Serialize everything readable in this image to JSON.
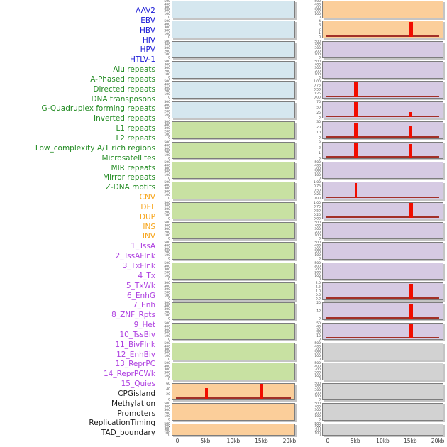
{
  "colors": {
    "label_virus": "#1a1ad6",
    "label_repeat": "#228b22",
    "label_sv": "#f7a51b",
    "label_chromatin": "#ae3fe0",
    "label_other": "#1a1a1a",
    "fill_blue": "#d5e7ef",
    "fill_green": "#c8e1a2",
    "fill_orange": "#fbce9a",
    "fill_purple": "#d6cae3",
    "fill_gray": "#d2d2d2",
    "spike_red": "#f10d00",
    "baseline_red": "#a23028",
    "panel_border": "#7d7d7d",
    "tick_text": "#4d4d4d",
    "axis_text": "#3a3a3a"
  },
  "chart_data": {
    "type": "area",
    "title": "",
    "xlabel": "",
    "ylabel": "",
    "x_range_kb": [
      0,
      20
    ],
    "x_ticks": [
      "0",
      "5kb",
      "10kb",
      "15kb",
      "20kb"
    ],
    "grid": false,
    "legend": "none",
    "facet_row_mapping": "each small panel spans two consecutive row labels",
    "row_labels": [
      {
        "text": "AAV2",
        "group": "virus"
      },
      {
        "text": "EBV",
        "group": "virus"
      },
      {
        "text": "HBV",
        "group": "virus"
      },
      {
        "text": "HIV",
        "group": "virus"
      },
      {
        "text": "HPV",
        "group": "virus"
      },
      {
        "text": "HTLV-1",
        "group": "virus"
      },
      {
        "text": "Alu repeats",
        "group": "repeat"
      },
      {
        "text": "A-Phased repeats",
        "group": "repeat"
      },
      {
        "text": "Directed repeats",
        "group": "repeat"
      },
      {
        "text": "DNA transposons",
        "group": "repeat"
      },
      {
        "text": "G-Quadruplex forming repeats",
        "group": "repeat"
      },
      {
        "text": "Inverted repeats",
        "group": "repeat"
      },
      {
        "text": "L1 repeats",
        "group": "repeat"
      },
      {
        "text": "L2 repeats",
        "group": "repeat"
      },
      {
        "text": "Low_complexity A/T rich regions",
        "group": "repeat"
      },
      {
        "text": "Microsatellites",
        "group": "repeat"
      },
      {
        "text": "MIR repeats",
        "group": "repeat"
      },
      {
        "text": "Mirror repeats",
        "group": "repeat"
      },
      {
        "text": "Z-DNA motifs",
        "group": "repeat"
      },
      {
        "text": "CNV",
        "group": "sv"
      },
      {
        "text": "DEL",
        "group": "sv"
      },
      {
        "text": "DUP",
        "group": "sv"
      },
      {
        "text": "INS",
        "group": "sv"
      },
      {
        "text": "INV",
        "group": "sv"
      },
      {
        "text": "1_TssA",
        "group": "chromatin"
      },
      {
        "text": "2_TssAFlnk",
        "group": "chromatin"
      },
      {
        "text": "3_TxFlnk",
        "group": "chromatin"
      },
      {
        "text": "4_Tx",
        "group": "chromatin"
      },
      {
        "text": "5_TxWk",
        "group": "chromatin"
      },
      {
        "text": "6_EnhG",
        "group": "chromatin"
      },
      {
        "text": "7_Enh",
        "group": "chromatin"
      },
      {
        "text": "8_ZNF_Rpts",
        "group": "chromatin"
      },
      {
        "text": "9_Het",
        "group": "chromatin"
      },
      {
        "text": "10_TssBiv",
        "group": "chromatin"
      },
      {
        "text": "11_BivFlnk",
        "group": "chromatin"
      },
      {
        "text": "12_EnhBiv",
        "group": "chromatin"
      },
      {
        "text": "13_ReprPC",
        "group": "chromatin"
      },
      {
        "text": "14_ReprPCWk",
        "group": "chromatin"
      },
      {
        "text": "15_Quies",
        "group": "chromatin"
      },
      {
        "text": "CPGisland",
        "group": "other"
      },
      {
        "text": "Methylation",
        "group": "other"
      },
      {
        "text": "Promoters",
        "group": "other"
      },
      {
        "text": "ReplicationTiming",
        "group": "other"
      },
      {
        "text": "TAD_boundary",
        "group": "other"
      }
    ],
    "facet_rows": [
      [
        "AAV2",
        "EBV"
      ],
      [
        "HBV",
        "HIV"
      ],
      [
        "HPV",
        "HTLV-1"
      ],
      [
        "Alu repeats",
        "A-Phased repeats"
      ],
      [
        "Directed repeats",
        "DNA transposons"
      ],
      [
        "G-Quadruplex forming repeats",
        "Inverted repeats"
      ],
      [
        "L1 repeats",
        "L2 repeats"
      ],
      [
        "Low_complexity A/T rich regions",
        "Microsatellites"
      ],
      [
        "MIR repeats",
        "Mirror repeats"
      ],
      [
        "Z-DNA motifs",
        "CNV"
      ],
      [
        "DEL",
        "DUP"
      ],
      [
        "INS",
        "INV"
      ],
      [
        "1_TssA",
        "2_TssAFlnk"
      ],
      [
        "3_TxFlnk",
        "4_Tx"
      ],
      [
        "5_TxWk",
        "6_EnhG"
      ],
      [
        "7_Enh",
        "8_ZNF_Rpts"
      ],
      [
        "9_Het",
        "10_TssBiv"
      ],
      [
        "11_BivFlnk",
        "12_EnhBiv"
      ],
      [
        "13_ReprPC",
        "14_ReprPCWk"
      ],
      [
        "15_Quies",
        "CPGisland"
      ],
      [
        "Methylation",
        "Promoters"
      ],
      [
        "ReplicationTiming",
        "TAD_boundary"
      ]
    ],
    "left_facets": [
      {
        "fill": "blue",
        "ylim": [
          0,
          500
        ],
        "ticks": [
          "500",
          "400",
          "300",
          "200",
          "100",
          "0"
        ],
        "baseline": false,
        "spikes": []
      },
      {
        "fill": "blue",
        "ylim": [
          0,
          500
        ],
        "ticks": [
          "500",
          "400",
          "300",
          "200",
          "100",
          "0"
        ],
        "baseline": false,
        "spikes": []
      },
      {
        "fill": "blue",
        "ylim": [
          0,
          500
        ],
        "ticks": [
          "500",
          "400",
          "300",
          "200",
          "100",
          "0"
        ],
        "baseline": false,
        "spikes": []
      },
      {
        "fill": "blue",
        "ylim": [
          0,
          500
        ],
        "ticks": [
          "500",
          "400",
          "300",
          "200",
          "100",
          "0"
        ],
        "baseline": false,
        "spikes": []
      },
      {
        "fill": "blue",
        "ylim": [
          0,
          500
        ],
        "ticks": [
          "500",
          "400",
          "300",
          "200",
          "100",
          "0"
        ],
        "baseline": false,
        "spikes": []
      },
      {
        "fill": "blue",
        "ylim": [
          0,
          500
        ],
        "ticks": [
          "500",
          "400",
          "300",
          "200",
          "100",
          "0"
        ],
        "baseline": false,
        "spikes": []
      },
      {
        "fill": "green",
        "ylim": [
          0,
          500
        ],
        "ticks": [
          "500",
          "400",
          "300",
          "200",
          "100",
          "0"
        ],
        "baseline": false,
        "spikes": []
      },
      {
        "fill": "green",
        "ylim": [
          0,
          500
        ],
        "ticks": [
          "500",
          "400",
          "300",
          "200",
          "100",
          "0"
        ],
        "baseline": false,
        "spikes": []
      },
      {
        "fill": "green",
        "ylim": [
          0,
          500
        ],
        "ticks": [
          "500",
          "400",
          "300",
          "200",
          "100",
          "0"
        ],
        "baseline": false,
        "spikes": []
      },
      {
        "fill": "green",
        "ylim": [
          0,
          500
        ],
        "ticks": [
          "500",
          "400",
          "300",
          "200",
          "100",
          "0"
        ],
        "baseline": false,
        "spikes": []
      },
      {
        "fill": "green",
        "ylim": [
          0,
          500
        ],
        "ticks": [
          "500",
          "400",
          "300",
          "200",
          "100",
          "0"
        ],
        "baseline": false,
        "spikes": []
      },
      {
        "fill": "green",
        "ylim": [
          0,
          500
        ],
        "ticks": [
          "500",
          "400",
          "300",
          "200",
          "100",
          "0"
        ],
        "baseline": false,
        "spikes": []
      },
      {
        "fill": "green",
        "ylim": [
          0,
          500
        ],
        "ticks": [
          "500",
          "400",
          "300",
          "200",
          "100",
          "0"
        ],
        "baseline": false,
        "spikes": []
      },
      {
        "fill": "green",
        "ylim": [
          0,
          500
        ],
        "ticks": [
          "500",
          "400",
          "300",
          "200",
          "100",
          "0"
        ],
        "baseline": false,
        "spikes": []
      },
      {
        "fill": "green",
        "ylim": [
          0,
          500
        ],
        "ticks": [
          "500",
          "400",
          "300",
          "200",
          "100",
          "0"
        ],
        "baseline": false,
        "spikes": []
      },
      {
        "fill": "green",
        "ylim": [
          0,
          500
        ],
        "ticks": [
          "500",
          "400",
          "300",
          "200",
          "100",
          "0"
        ],
        "baseline": false,
        "spikes": []
      },
      {
        "fill": "green",
        "ylim": [
          0,
          500
        ],
        "ticks": [
          "500",
          "400",
          "300",
          "200",
          "100",
          "0"
        ],
        "baseline": false,
        "spikes": []
      },
      {
        "fill": "green",
        "ylim": [
          0,
          500
        ],
        "ticks": [
          "500",
          "400",
          "300",
          "200",
          "100",
          "0"
        ],
        "baseline": false,
        "spikes": []
      },
      {
        "fill": "green",
        "ylim": [
          0,
          500
        ],
        "ticks": [
          "500",
          "400",
          "300",
          "200",
          "100",
          "0"
        ],
        "baseline": false,
        "spikes": []
      },
      {
        "fill": "orange",
        "ylim": [
          0,
          60
        ],
        "ticks": [
          "60",
          "40",
          "20",
          "0"
        ],
        "baseline": true,
        "spikes": [
          {
            "x_kb": 5,
            "v": 45,
            "frac": 0.75,
            "w": 4
          },
          {
            "x_kb": 15,
            "v": 60,
            "frac": 1,
            "w": 4
          }
        ]
      },
      {
        "fill": "orange",
        "ylim": [
          0,
          500
        ],
        "ticks": [
          "500",
          "400",
          "300",
          "200",
          "100",
          "0"
        ],
        "baseline": false,
        "spikes": []
      },
      {
        "fill": "orange",
        "ylim": [
          0,
          500
        ],
        "ticks": [
          "500",
          "400",
          "300",
          "200",
          "100",
          "0"
        ],
        "baseline": false,
        "spikes": [],
        "dense": true
      }
    ],
    "right_facets": [
      {
        "fill": "orange",
        "ylim": [
          0,
          500
        ],
        "ticks": [
          "500",
          "400",
          "300",
          "200",
          "100",
          "0"
        ],
        "baseline": false,
        "spikes": []
      },
      {
        "fill": "orange",
        "ylim": [
          0,
          4
        ],
        "ticks": [
          "4",
          "3",
          "2",
          "1",
          "0"
        ],
        "baseline": true,
        "spikes": [
          {
            "x_kb": 15,
            "v": 4,
            "frac": 1,
            "w": 5
          }
        ]
      },
      {
        "fill": "purple",
        "ylim": [
          0,
          500
        ],
        "ticks": [
          "500",
          "400",
          "300",
          "200",
          "100",
          "0"
        ],
        "baseline": false,
        "spikes": []
      },
      {
        "fill": "purple",
        "ylim": [
          0,
          500
        ],
        "ticks": [
          "500",
          "400",
          "300",
          "200",
          "100",
          "0"
        ],
        "baseline": false,
        "spikes": []
      },
      {
        "fill": "purple",
        "ylim": [
          0,
          1
        ],
        "ticks": [
          "1.00",
          "0.75",
          "0.50",
          "0.25",
          "0.00"
        ],
        "baseline": true,
        "spikes": [
          {
            "x_kb": 5,
            "v": 1.0,
            "frac": 1,
            "w": 5
          }
        ]
      },
      {
        "fill": "purple",
        "ylim": [
          0,
          75
        ],
        "ticks": [
          "75",
          "50",
          "25",
          "0"
        ],
        "baseline": true,
        "spikes": [
          {
            "x_kb": 5,
            "v": 78,
            "frac": 1,
            "w": 5
          },
          {
            "x_kb": 15,
            "v": 25,
            "frac": 0.33,
            "w": 4
          }
        ]
      },
      {
        "fill": "purple",
        "ylim": [
          0,
          30
        ],
        "ticks": [
          "30",
          "20",
          "10",
          "0"
        ],
        "baseline": true,
        "spikes": [
          {
            "x_kb": 5,
            "v": 32,
            "frac": 1,
            "w": 5
          },
          {
            "x_kb": 15,
            "v": 24,
            "frac": 0.8,
            "w": 4
          }
        ]
      },
      {
        "fill": "purple",
        "ylim": [
          0,
          3
        ],
        "ticks": [
          "3",
          "2",
          "1",
          "0"
        ],
        "baseline": true,
        "spikes": [
          {
            "x_kb": 5,
            "v": 3.2,
            "frac": 1,
            "w": 5
          },
          {
            "x_kb": 15,
            "v": 2.8,
            "frac": 0.93,
            "w": 4
          }
        ]
      },
      {
        "fill": "purple",
        "ylim": [
          0,
          500
        ],
        "ticks": [
          "500",
          "400",
          "300",
          "200",
          "100",
          "0"
        ],
        "baseline": false,
        "spikes": []
      },
      {
        "fill": "purple",
        "ylim": [
          0,
          1
        ],
        "ticks": [
          "1.00",
          "0.75",
          "0.50",
          "0.25",
          "0.00"
        ],
        "baseline": true,
        "spikes": [
          {
            "x_kb": 5,
            "v": 1.0,
            "frac": 1,
            "w": 2
          }
        ]
      },
      {
        "fill": "purple",
        "ylim": [
          0,
          1
        ],
        "ticks": [
          "1.00",
          "0.75",
          "0.50",
          "0.25",
          "0.00"
        ],
        "baseline": true,
        "spikes": [
          {
            "x_kb": 15,
            "v": 1.0,
            "frac": 1,
            "w": 5
          }
        ]
      },
      {
        "fill": "purple",
        "ylim": [
          0,
          500
        ],
        "ticks": [
          "500",
          "400",
          "300",
          "200",
          "100",
          "0"
        ],
        "baseline": false,
        "spikes": []
      },
      {
        "fill": "purple",
        "ylim": [
          0,
          500
        ],
        "ticks": [
          "500",
          "400",
          "300",
          "200",
          "100",
          "0"
        ],
        "baseline": false,
        "spikes": []
      },
      {
        "fill": "purple",
        "ylim": [
          0,
          500
        ],
        "ticks": [
          "500",
          "400",
          "300",
          "200",
          "100",
          "0"
        ],
        "baseline": false,
        "spikes": []
      },
      {
        "fill": "purple",
        "ylim": [
          0,
          2
        ],
        "ticks": [
          "2.0",
          "1.5",
          "1.0",
          "0.5",
          "0.0"
        ],
        "baseline": true,
        "spikes": [
          {
            "x_kb": 15,
            "v": 2.0,
            "frac": 1,
            "w": 5
          }
        ]
      },
      {
        "fill": "purple",
        "ylim": [
          0,
          20
        ],
        "ticks": [
          "20",
          "10",
          "0"
        ],
        "baseline": true,
        "spikes": [
          {
            "x_kb": 15,
            "v": 22,
            "frac": 1,
            "w": 5
          }
        ]
      },
      {
        "fill": "purple",
        "ylim": [
          0,
          50
        ],
        "ticks": [
          "50",
          "40",
          "30",
          "20",
          "10",
          "0"
        ],
        "baseline": true,
        "spikes": [
          {
            "x_kb": 5,
            "v": 3,
            "frac": 0.07,
            "w": 4
          },
          {
            "x_kb": 15,
            "v": 50,
            "frac": 1,
            "w": 5
          }
        ]
      },
      {
        "fill": "gray",
        "ylim": [
          0,
          500
        ],
        "ticks": [
          "500",
          "400",
          "300",
          "200",
          "100",
          "0"
        ],
        "baseline": false,
        "spikes": []
      },
      {
        "fill": "gray",
        "ylim": [
          0,
          500
        ],
        "ticks": [
          "500",
          "400",
          "300",
          "200",
          "100",
          "0"
        ],
        "baseline": false,
        "spikes": []
      },
      {
        "fill": "gray",
        "ylim": [
          0,
          500
        ],
        "ticks": [
          "500",
          "400",
          "300",
          "200",
          "100",
          "0"
        ],
        "baseline": false,
        "spikes": []
      },
      {
        "fill": "gray",
        "ylim": [
          0,
          500
        ],
        "ticks": [
          "500",
          "400",
          "300",
          "200",
          "100",
          "0"
        ],
        "baseline": false,
        "spikes": []
      },
      {
        "fill": "gray",
        "ylim": [
          0,
          500
        ],
        "ticks": [
          "500",
          "400",
          "300",
          "200",
          "100",
          "0"
        ],
        "baseline": false,
        "spikes": [],
        "dense": true
      }
    ]
  }
}
